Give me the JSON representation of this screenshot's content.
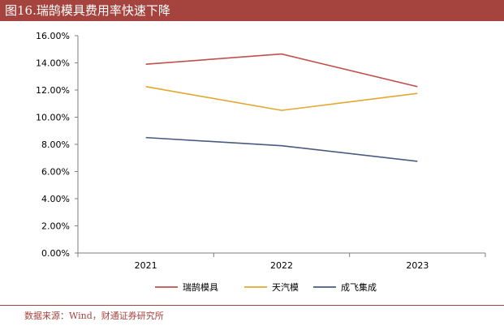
{
  "header": {
    "title": "图16.瑞鹄模具费用率快速下降"
  },
  "footer": {
    "source": "数据来源：Wind，财通证券研究所"
  },
  "colors": {
    "brand": "#a5443f"
  },
  "chart_data": {
    "type": "line",
    "title": "",
    "xlabel": "",
    "ylabel": "",
    "categories": [
      "2021",
      "2022",
      "2023"
    ],
    "ylim": [
      0,
      16
    ],
    "yticks": [
      0,
      2,
      4,
      6,
      8,
      10,
      12,
      14,
      16
    ],
    "ytick_labels": [
      "0.00%",
      "2.00%",
      "4.00%",
      "6.00%",
      "8.00%",
      "10.00%",
      "12.00%",
      "14.00%",
      "16.00%"
    ],
    "grid": false,
    "legend_position": "bottom",
    "series": [
      {
        "name": "瑞鹄模具",
        "values": [
          13.9,
          14.65,
          12.25
        ],
        "color": "#c0504d"
      },
      {
        "name": "天汽模",
        "values": [
          12.25,
          10.5,
          11.75
        ],
        "color": "#e3a72f"
      },
      {
        "name": "成飞集成",
        "values": [
          8.5,
          7.9,
          6.75
        ],
        "color": "#4a5a80"
      }
    ]
  }
}
